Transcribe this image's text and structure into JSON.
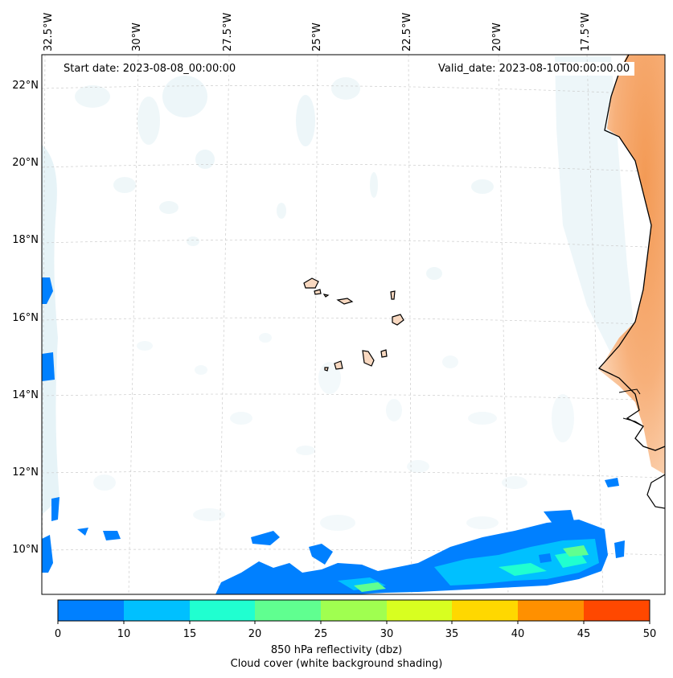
{
  "map": {
    "start_date": "Start date: 2023-08-08_00:00:00",
    "valid_date": "Valid_date: 2023-08-10T00:00:00.00",
    "lon_labels": [
      "32.5°W",
      "30°W",
      "27.5°W",
      "25°W",
      "22.5°W",
      "20°W",
      "17.5°W"
    ],
    "lat_labels": [
      "22°N",
      "20°N",
      "18°N",
      "16°N",
      "14°N",
      "12°N",
      "10°N"
    ],
    "region": "Cabo Verde islands and West African coast",
    "colors": {
      "cloud": "#d6ebf2",
      "land_desert": "#f6a86b",
      "coast": "#000000",
      "grid": "#cccccc"
    }
  },
  "colorbar": {
    "ticks": [
      "0",
      "10",
      "15",
      "20",
      "25",
      "30",
      "35",
      "40",
      "45",
      "50"
    ],
    "colors": [
      "#0080ff",
      "#00c0ff",
      "#20ffd0",
      "#60ff90",
      "#a0ff50",
      "#d8ff20",
      "#ffd800",
      "#ff9000",
      "#ff4800"
    ],
    "title_line1": "850 hPa reflectivity (dbz)",
    "title_line2": "Cloud cover (white background shading)"
  }
}
